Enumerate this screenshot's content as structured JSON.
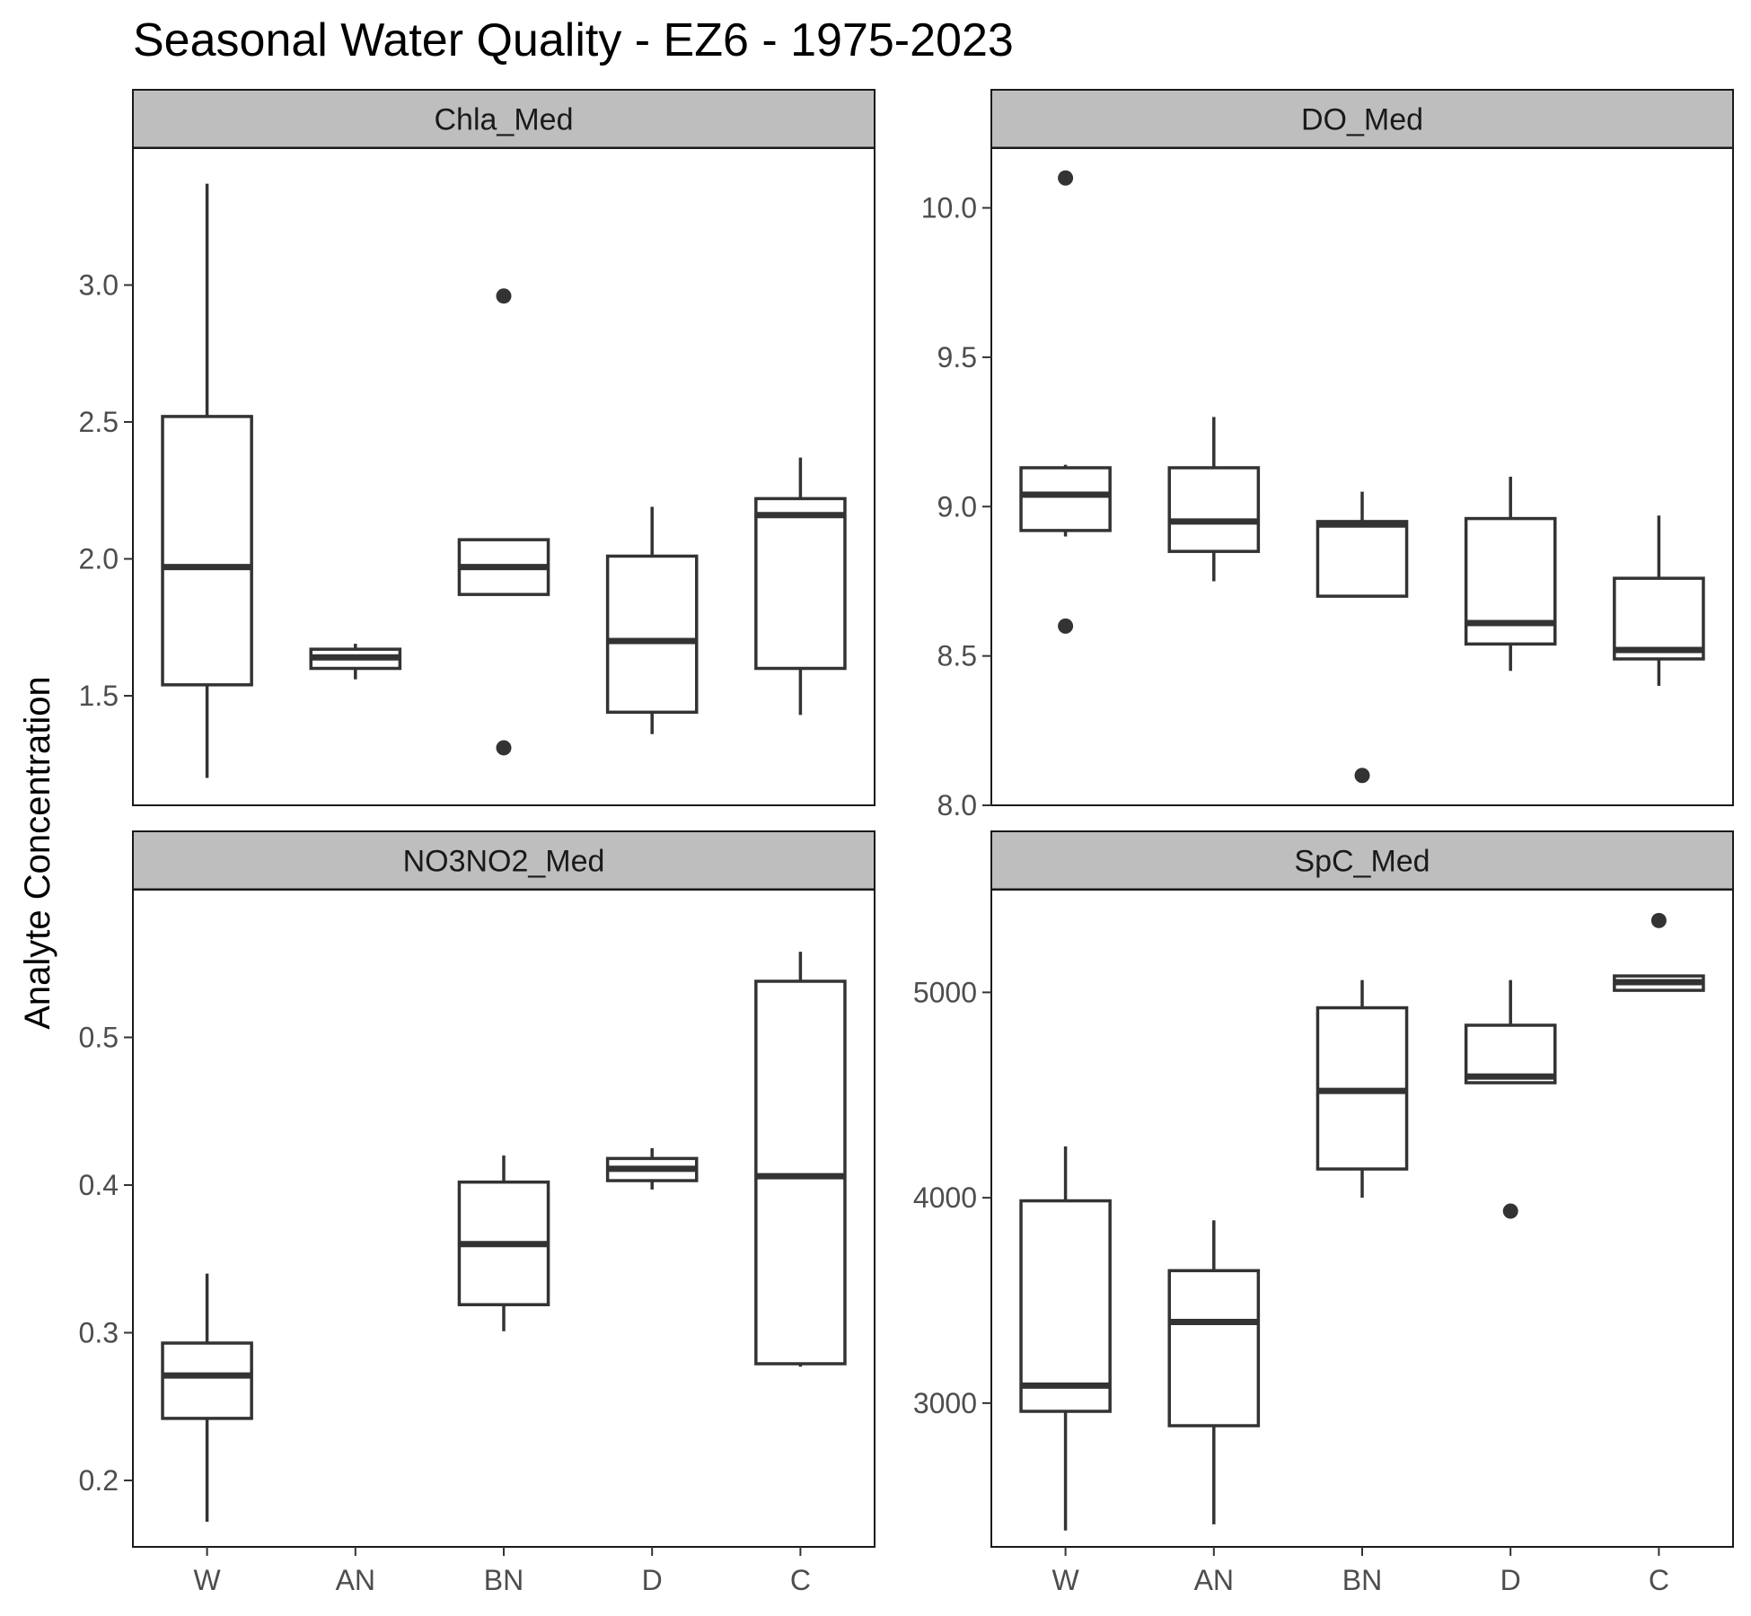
{
  "chart_data": {
    "type": "boxplot",
    "title": "Seasonal Water Quality - EZ6 - 1975-2023",
    "ylabel": "Analyte Concentration",
    "xlabel": "",
    "categories": [
      "W",
      "AN",
      "BN",
      "D",
      "C"
    ],
    "grid": false,
    "panels": [
      {
        "name": "Chla_Med",
        "ylim": [
          1.1,
          3.5
        ],
        "yticks": [
          "1.5",
          "2.0",
          "2.5",
          "3.0"
        ],
        "boxes": [
          {
            "category": "W",
            "lower_whisker": 1.2,
            "q1": 1.54,
            "median": 1.97,
            "q3": 2.52,
            "upper_whisker": 3.37,
            "outliers": []
          },
          {
            "category": "AN",
            "lower_whisker": 1.56,
            "q1": 1.6,
            "median": 1.64,
            "q3": 1.67,
            "upper_whisker": 1.69,
            "outliers": []
          },
          {
            "category": "BN",
            "lower_whisker": 1.87,
            "q1": 1.87,
            "median": 1.97,
            "q3": 2.07,
            "upper_whisker": 2.07,
            "outliers": [
              2.96,
              1.31
            ]
          },
          {
            "category": "D",
            "lower_whisker": 1.36,
            "q1": 1.44,
            "median": 1.7,
            "q3": 2.01,
            "upper_whisker": 2.19,
            "outliers": []
          },
          {
            "category": "C",
            "lower_whisker": 1.43,
            "q1": 1.6,
            "median": 2.16,
            "q3": 2.22,
            "upper_whisker": 2.37,
            "outliers": []
          }
        ]
      },
      {
        "name": "DO_Med",
        "ylim": [
          8.0,
          10.2
        ],
        "yticks": [
          "8.0",
          "8.5",
          "9.0",
          "9.5",
          "10.0"
        ],
        "boxes": [
          {
            "category": "W",
            "lower_whisker": 8.9,
            "q1": 8.92,
            "median": 9.04,
            "q3": 9.13,
            "upper_whisker": 9.14,
            "outliers": [
              10.1,
              8.6
            ]
          },
          {
            "category": "AN",
            "lower_whisker": 8.75,
            "q1": 8.85,
            "median": 8.95,
            "q3": 9.13,
            "upper_whisker": 9.3,
            "outliers": []
          },
          {
            "category": "BN",
            "lower_whisker": 8.7,
            "q1": 8.7,
            "median": 8.94,
            "q3": 8.95,
            "upper_whisker": 9.05,
            "outliers": [
              8.1
            ]
          },
          {
            "category": "D",
            "lower_whisker": 8.45,
            "q1": 8.54,
            "median": 8.61,
            "q3": 8.96,
            "upper_whisker": 9.1,
            "outliers": []
          },
          {
            "category": "C",
            "lower_whisker": 8.4,
            "q1": 8.49,
            "median": 8.52,
            "q3": 8.76,
            "upper_whisker": 8.97,
            "outliers": []
          }
        ]
      },
      {
        "name": "NO3NO2_Med",
        "ylim": [
          0.155,
          0.6
        ],
        "yticks": [
          "0.2",
          "0.3",
          "0.4",
          "0.5"
        ],
        "boxes": [
          {
            "category": "W",
            "lower_whisker": 0.172,
            "q1": 0.242,
            "median": 0.271,
            "q3": 0.293,
            "upper_whisker": 0.34,
            "outliers": []
          },
          {
            "category": "AN",
            "lower_whisker": null,
            "q1": null,
            "median": null,
            "q3": null,
            "upper_whisker": null,
            "outliers": []
          },
          {
            "category": "BN",
            "lower_whisker": 0.301,
            "q1": 0.319,
            "median": 0.36,
            "q3": 0.402,
            "upper_whisker": 0.42,
            "outliers": []
          },
          {
            "category": "D",
            "lower_whisker": 0.397,
            "q1": 0.403,
            "median": 0.411,
            "q3": 0.418,
            "upper_whisker": 0.425,
            "outliers": []
          },
          {
            "category": "C",
            "lower_whisker": 0.277,
            "q1": 0.279,
            "median": 0.406,
            "q3": 0.538,
            "upper_whisker": 0.558,
            "outliers": []
          }
        ]
      },
      {
        "name": "SpC_Med",
        "ylim": [
          2300,
          5500
        ],
        "yticks": [
          "3000",
          "4000",
          "5000"
        ],
        "boxes": [
          {
            "category": "W",
            "lower_whisker": 2380,
            "q1": 2960,
            "median": 3085,
            "q3": 3985,
            "upper_whisker": 4250,
            "outliers": []
          },
          {
            "category": "AN",
            "lower_whisker": 2410,
            "q1": 2890,
            "median": 3395,
            "q3": 3645,
            "upper_whisker": 3890,
            "outliers": []
          },
          {
            "category": "BN",
            "lower_whisker": 4000,
            "q1": 4140,
            "median": 4520,
            "q3": 4925,
            "upper_whisker": 5060,
            "outliers": []
          },
          {
            "category": "D",
            "lower_whisker": 4560,
            "q1": 4560,
            "median": 4590,
            "q3": 4840,
            "upper_whisker": 5060,
            "outliers": [
              3935
            ]
          },
          {
            "category": "C",
            "lower_whisker": 5010,
            "q1": 5010,
            "median": 5050,
            "q3": 5080,
            "upper_whisker": 5080,
            "outliers": [
              5350
            ]
          }
        ]
      }
    ]
  }
}
